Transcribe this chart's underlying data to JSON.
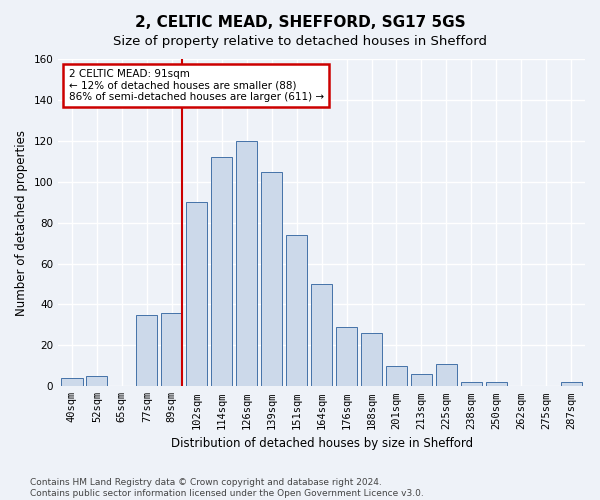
{
  "title1": "2, CELTIC MEAD, SHEFFORD, SG17 5GS",
  "title2": "Size of property relative to detached houses in Shefford",
  "xlabel": "Distribution of detached houses by size in Shefford",
  "ylabel": "Number of detached properties",
  "footnote1": "Contains HM Land Registry data © Crown copyright and database right 2024.",
  "footnote2": "Contains public sector information licensed under the Open Government Licence v3.0.",
  "bar_labels": [
    "40sqm",
    "52sqm",
    "65sqm",
    "77sqm",
    "89sqm",
    "102sqm",
    "114sqm",
    "126sqm",
    "139sqm",
    "151sqm",
    "164sqm",
    "176sqm",
    "188sqm",
    "201sqm",
    "213sqm",
    "225sqm",
    "238sqm",
    "250sqm",
    "262sqm",
    "275sqm",
    "287sqm"
  ],
  "bar_values": [
    4,
    5,
    0,
    35,
    36,
    90,
    112,
    120,
    105,
    74,
    50,
    29,
    26,
    10,
    6,
    11,
    2,
    2,
    0,
    0,
    2
  ],
  "bar_color": "#ccd9ea",
  "bar_edge_color": "#4472a8",
  "highlight_bar_idx": 4,
  "annotation_line1": "2 CELTIC MEAD: 91sqm",
  "annotation_line2": "← 12% of detached houses are smaller (88)",
  "annotation_line3": "86% of semi-detached houses are larger (611) →",
  "red_line_color": "#cc0000",
  "annotation_box_color": "white",
  "annotation_box_edge": "#cc0000",
  "ylim_max": 160,
  "yticks": [
    0,
    20,
    40,
    60,
    80,
    100,
    120,
    140,
    160
  ],
  "bg_color": "#eef2f8",
  "grid_color": "white",
  "title1_fontsize": 11,
  "title2_fontsize": 9.5,
  "ylabel_fontsize": 8.5,
  "xlabel_fontsize": 8.5,
  "tick_fontsize": 7.5,
  "annot_fontsize": 7.5,
  "footnote_fontsize": 6.5
}
